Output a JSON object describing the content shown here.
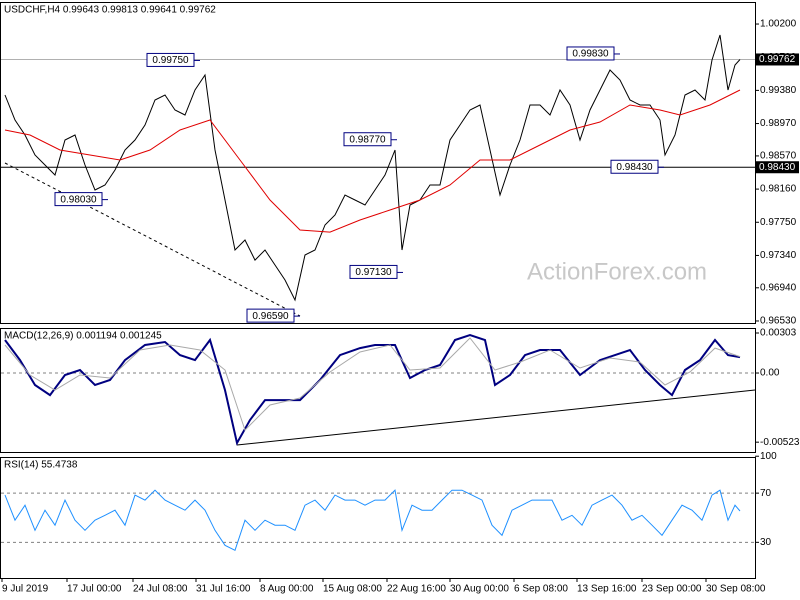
{
  "chart_data": [
    {
      "type": "line",
      "title": "USDCHF,H4  0.99643 0.99813 0.99641 0.99762",
      "watermark": "ActionForex.com",
      "xlim": [
        0,
        755
      ],
      "ylim": [
        0.96505,
        1.00497
      ],
      "yticks": [
        {
          "value": 1.002,
          "label": "1.00200"
        },
        {
          "value": 0.9979,
          "label": "0.99790"
        },
        {
          "value": 0.9938,
          "label": "0.99380"
        },
        {
          "value": 0.9897,
          "label": "0.98970"
        },
        {
          "value": 0.9857,
          "label": "0.98570"
        },
        {
          "value": 0.9816,
          "label": "0.98160"
        },
        {
          "value": 0.9775,
          "label": "0.97750"
        },
        {
          "value": 0.9734,
          "label": "0.97340"
        },
        {
          "value": 0.9694,
          "label": "0.96940"
        },
        {
          "value": 0.9653,
          "label": "0.96530"
        }
      ],
      "hlines": [
        {
          "value": 0.99762,
          "label": "0.99762",
          "color": "#b0b0b0"
        },
        {
          "value": 0.9843,
          "label": "0.98430",
          "color": "#000000"
        }
      ],
      "annotations": [
        {
          "x": 200,
          "value": 0.9975,
          "label": "0.99750"
        },
        {
          "x": 108,
          "value": 0.9803,
          "label": "0.98030"
        },
        {
          "x": 397,
          "value": 0.9877,
          "label": "0.98770"
        },
        {
          "x": 403,
          "value": 0.9713,
          "label": "0.97130"
        },
        {
          "x": 300,
          "value": 0.9659,
          "label": "0.96590"
        },
        {
          "x": 620,
          "value": 0.9983,
          "label": "0.99830"
        },
        {
          "x": 664,
          "value": 0.9843,
          "label": "0.98430"
        }
      ],
      "series": [
        {
          "color": "#000000",
          "width": 1,
          "x": [
            5,
            15,
            25,
            35,
            45,
            55,
            65,
            75,
            85,
            95,
            105,
            115,
            125,
            135,
            145,
            155,
            165,
            175,
            185,
            195,
            205,
            215,
            225,
            235,
            245,
            255,
            265,
            275,
            285,
            295,
            305,
            315,
            325,
            335,
            345,
            355,
            365,
            375,
            385,
            395,
            402,
            410,
            420,
            430,
            440,
            450,
            460,
            470,
            480,
            490,
            500,
            510,
            520,
            530,
            540,
            550,
            560,
            570,
            580,
            590,
            600,
            610,
            620,
            630,
            640,
            650,
            660,
            665,
            675,
            685,
            695,
            705,
            712,
            720,
            728,
            735,
            740
          ],
          "values": [
            0.99323,
            0.99014,
            0.98828,
            0.98581,
            0.98458,
            0.98334,
            0.98767,
            0.98828,
            0.98458,
            0.98149,
            0.9821,
            0.98396,
            0.98643,
            0.98767,
            0.98952,
            0.99261,
            0.99323,
            0.99137,
            0.99076,
            0.99385,
            0.9957,
            0.98643,
            0.98025,
            0.97407,
            0.97531,
            0.97283,
            0.97407,
            0.97222,
            0.97036,
            0.96789,
            0.97345,
            0.97407,
            0.97716,
            0.9784,
            0.98087,
            0.98025,
            0.97963,
            0.98149,
            0.98334,
            0.98643,
            0.97407,
            0.97963,
            0.98025,
            0.9821,
            0.9821,
            0.98767,
            0.98952,
            0.99137,
            0.99199,
            0.98643,
            0.98087,
            0.98458,
            0.98767,
            0.99199,
            0.99199,
            0.99076,
            0.99385,
            0.99199,
            0.98767,
            0.99137,
            0.99385,
            0.99632,
            0.99508,
            0.99261,
            0.99199,
            0.99199,
            0.99014,
            0.98581,
            0.98828,
            0.99323,
            0.99385,
            0.99261,
            0.99755,
            1.00064,
            0.99385,
            0.99694,
            0.99762
          ]
        },
        {
          "color": "#e00000",
          "width": 1,
          "x": [
            5,
            30,
            60,
            90,
            120,
            150,
            180,
            210,
            240,
            270,
            300,
            330,
            360,
            390,
            420,
            450,
            480,
            510,
            540,
            570,
            600,
            630,
            660,
            680,
            710,
            740
          ],
          "values": [
            0.9889,
            0.98828,
            0.98643,
            0.98581,
            0.98519,
            0.98643,
            0.9889,
            0.99014,
            0.98519,
            0.98025,
            0.97654,
            0.97629,
            0.97778,
            0.97901,
            0.98025,
            0.9821,
            0.98519,
            0.98519,
            0.98705,
            0.9889,
            0.98989,
            0.99199,
            0.99137,
            0.99076,
            0.99199,
            0.99385
          ]
        }
      ]
    },
    {
      "type": "line",
      "title": "MACD(12,26,9) 0.001194 0.001245",
      "xlim": [
        0,
        755
      ],
      "ylim": [
        -0.00598,
        0.00356
      ],
      "yticks": [
        0.00303,
        {
          "value": 0,
          "label": "0.00"
        },
        -0.005236
      ],
      "levels": [
        0
      ],
      "series": [
        {
          "color": "#000080",
          "width": 2,
          "x": [
            5,
            20,
            35,
            50,
            65,
            80,
            95,
            110,
            125,
            145,
            165,
            180,
            195,
            210,
            225,
            237,
            250,
            265,
            280,
            300,
            320,
            340,
            360,
            375,
            395,
            410,
            425,
            440,
            455,
            470,
            485,
            495,
            510,
            525,
            540,
            560,
            580,
            600,
            615,
            630,
            645,
            660,
            672,
            685,
            700,
            715,
            728,
            740
          ],
          "values": [
            0.0025,
            0.00098,
            -0.00091,
            -0.00167,
            -0.00015,
            0.00023,
            -0.00091,
            -0.00053,
            0.00098,
            0.00212,
            0.00235,
            0.00136,
            0.00098,
            0.0025,
            -0.00129,
            -0.0053,
            -0.00356,
            -0.00205,
            -0.00205,
            -0.00205,
            -0.00053,
            0.00136,
            0.00189,
            0.00212,
            0.00212,
            -0.00038,
            0.00023,
            0.00061,
            0.0025,
            0.00288,
            0.0025,
            -0.00091,
            -0.00015,
            0.00136,
            0.00174,
            0.00174,
            -0.00015,
            0.00098,
            0.00136,
            0.00174,
            0.00023,
            -0.00091,
            -0.00167,
            0.00023,
            0.00098,
            0.0025,
            0.00136,
            0.001194
          ]
        },
        {
          "color": "#a9a9a9",
          "width": 1,
          "x": [
            5,
            30,
            55,
            80,
            110,
            140,
            170,
            200,
            225,
            245,
            270,
            300,
            330,
            360,
            390,
            410,
            440,
            470,
            495,
            520,
            550,
            580,
            610,
            640,
            665,
            690,
            715,
            740
          ],
          "values": [
            0.00212,
            -0.00015,
            -0.00129,
            -0.00015,
            -0.00038,
            0.00174,
            0.00212,
            0.00174,
            0.00023,
            -0.00432,
            -0.00242,
            -0.00189,
            8e-05,
            0.00159,
            0.00212,
            0.00023,
            0.00038,
            0.00265,
            0.00023,
            0.00083,
            0.00174,
            0.00038,
            0.00114,
            0.00083,
            -0.00091,
            8e-05,
            0.00189,
            0.001245
          ]
        }
      ]
    },
    {
      "type": "line",
      "title": "RSI(14) 55.4738",
      "xlim": [
        0,
        755
      ],
      "ylim": [
        1,
        101
      ],
      "yticks": [
        100,
        70,
        30
      ],
      "levels": [
        70,
        30
      ],
      "xticks": [
        {
          "value": 2,
          "label": "9 Jul 2019"
        },
        {
          "value": 67,
          "label": "17 Jul 00:00"
        },
        {
          "value": 133,
          "label": "24 Jul 08:00"
        },
        {
          "value": 196,
          "label": "31 Jul 16:00"
        },
        {
          "value": 260,
          "label": "8 Aug 00:00"
        },
        {
          "value": 323,
          "label": "15 Aug 08:00"
        },
        {
          "value": 387,
          "label": "22 Aug 16:00"
        },
        {
          "value": 450,
          "label": "30 Aug 00:00"
        },
        {
          "value": 514,
          "label": "6 Sep 08:00"
        },
        {
          "value": 577,
          "label": "13 Sep 16:00"
        },
        {
          "value": 642,
          "label": "23 Sep 00:00"
        },
        {
          "value": 706,
          "label": "30 Sep 08:00"
        }
      ],
      "series": [
        {
          "color": "#1e90ff",
          "width": 1,
          "x": [
            5,
            15,
            25,
            35,
            45,
            55,
            65,
            75,
            85,
            95,
            105,
            115,
            125,
            135,
            145,
            155,
            165,
            175,
            185,
            195,
            205,
            215,
            225,
            235,
            245,
            255,
            265,
            275,
            285,
            295,
            305,
            315,
            325,
            335,
            345,
            355,
            365,
            375,
            385,
            395,
            402,
            412,
            422,
            432,
            442,
            452,
            462,
            472,
            482,
            492,
            502,
            512,
            522,
            532,
            542,
            552,
            562,
            572,
            582,
            592,
            602,
            612,
            622,
            632,
            642,
            652,
            662,
            672,
            682,
            692,
            702,
            712,
            720,
            728,
            735,
            740
          ],
          "values": [
            68.4,
            48,
            60.2,
            39.8,
            56.1,
            43.9,
            64.3,
            48,
            39.8,
            48,
            52,
            56.1,
            43.9,
            68.4,
            64.3,
            72.4,
            64.3,
            60.2,
            56.1,
            64.3,
            56.1,
            39.8,
            27.6,
            23.5,
            48,
            39.8,
            48,
            43.9,
            43.9,
            39.8,
            60.2,
            64.3,
            56.1,
            68.4,
            64.3,
            64.3,
            60.2,
            64.3,
            64.3,
            72.4,
            39.8,
            60.2,
            56.1,
            56.1,
            64.3,
            72.4,
            72.4,
            68.4,
            64.3,
            43.9,
            35.7,
            56.1,
            60.2,
            64.3,
            64.3,
            64.3,
            48,
            52,
            43.9,
            60.2,
            64.3,
            68.4,
            60.2,
            48,
            52,
            43.9,
            35.7,
            48,
            60.2,
            56.1,
            48,
            68.4,
            72.4,
            48,
            60.2,
            55.5
          ]
        }
      ]
    }
  ]
}
